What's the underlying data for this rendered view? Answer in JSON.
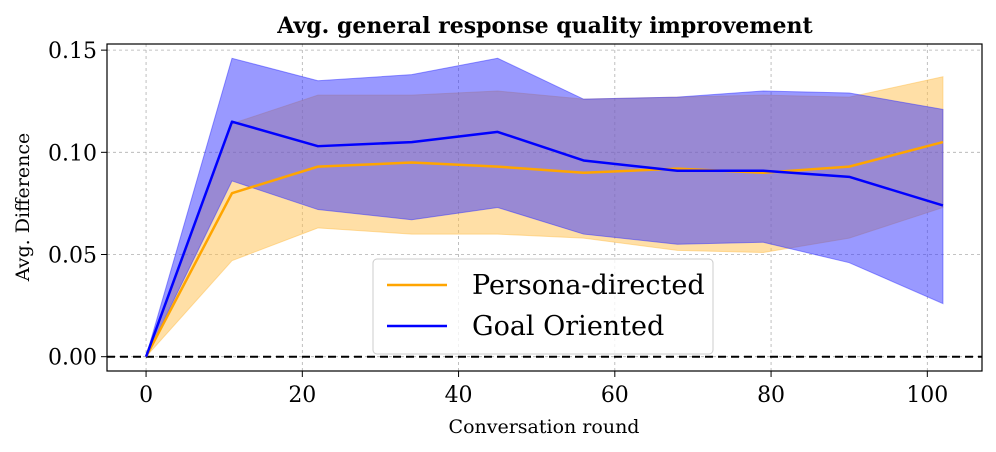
{
  "chart_data": {
    "type": "line",
    "title": "Avg. general response quality improvement",
    "xlabel": "Conversation round",
    "ylabel": "Avg. Difference",
    "xlim": [
      -5,
      107
    ],
    "ylim": [
      -0.007,
      0.153
    ],
    "xticks": [
      0,
      20,
      40,
      60,
      80,
      100
    ],
    "xtick_labels": [
      "0",
      "20",
      "40",
      "60",
      "80",
      "100"
    ],
    "yticks": [
      0.0,
      0.05,
      0.1,
      0.15
    ],
    "ytick_labels": [
      "0.00",
      "0.05",
      "0.10",
      "0.15"
    ],
    "grid": true,
    "legend_position": "lower-center",
    "reference_line": {
      "y": 0.0,
      "style": "dashed",
      "color": "#000000"
    },
    "x": [
      0,
      11,
      22,
      34,
      45,
      56,
      68,
      79,
      90,
      102
    ],
    "series": [
      {
        "name": "Persona-directed",
        "color": "#FFA500",
        "band_color": "#FFC04D",
        "values": [
          0.0,
          0.08,
          0.093,
          0.095,
          0.093,
          0.09,
          0.092,
          0.09,
          0.093,
          0.105
        ],
        "lower": [
          0.0,
          0.047,
          0.063,
          0.06,
          0.06,
          0.058,
          0.052,
          0.051,
          0.058,
          0.073
        ],
        "upper": [
          0.0,
          0.114,
          0.128,
          0.128,
          0.13,
          0.126,
          0.127,
          0.128,
          0.127,
          0.137
        ]
      },
      {
        "name": "Goal Oriented",
        "color": "#0000FF",
        "band_color": "#3333FF",
        "values": [
          0.0,
          0.115,
          0.103,
          0.105,
          0.11,
          0.096,
          0.091,
          0.091,
          0.088,
          0.074
        ],
        "lower": [
          0.0,
          0.086,
          0.072,
          0.067,
          0.073,
          0.06,
          0.055,
          0.056,
          0.046,
          0.026
        ],
        "upper": [
          0.0,
          0.146,
          0.135,
          0.138,
          0.146,
          0.126,
          0.127,
          0.13,
          0.129,
          0.121
        ]
      }
    ]
  }
}
